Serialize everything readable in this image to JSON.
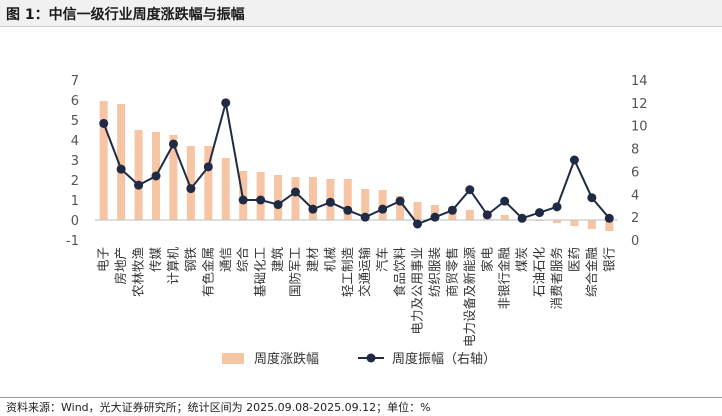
{
  "header": {
    "title": "图 1：中信一级行业周度涨跌幅与振幅"
  },
  "footer": {
    "source": "资料来源：Wind，光大证券研究所；统计区间为 2025.09.08-2025.09.12；单位：%"
  },
  "chart_data": {
    "type": "bar+line",
    "categories": [
      "电子",
      "房地产",
      "农林牧渔",
      "传媒",
      "计算机",
      "钢铁",
      "有色金属",
      "通信",
      "综合",
      "基础化工",
      "建筑",
      "国防军工",
      "建材",
      "机械",
      "轻工制造",
      "交通运输",
      "汽车",
      "食品饮料",
      "电力及公用事业",
      "纺织服装",
      "商贸零售",
      "电力设备及新能源",
      "家电",
      "非银行金融",
      "煤炭",
      "石油石化",
      "消费者服务",
      "医药",
      "综合金融",
      "银行"
    ],
    "series": [
      {
        "name": "周度涨跌幅",
        "type": "bar",
        "axis": "left",
        "color": "#F7C5A4",
        "values": [
          5.95,
          5.8,
          4.5,
          4.4,
          4.25,
          3.7,
          3.7,
          3.1,
          2.45,
          2.4,
          2.25,
          2.15,
          2.15,
          2.05,
          2.05,
          1.55,
          1.5,
          1.2,
          0.9,
          0.75,
          0.7,
          0.5,
          0.35,
          0.25,
          0.15,
          -0.05,
          -0.15,
          -0.3,
          -0.45,
          -0.55
        ]
      },
      {
        "name": "周度振幅（右轴）",
        "type": "line",
        "axis": "right",
        "color": "#1F2A44",
        "values": [
          10.2,
          6.2,
          4.8,
          5.6,
          8.4,
          4.5,
          6.4,
          12.0,
          3.5,
          3.5,
          3.1,
          4.2,
          2.7,
          3.3,
          2.6,
          2.0,
          2.7,
          3.4,
          1.4,
          2.0,
          2.6,
          4.4,
          2.2,
          3.4,
          1.9,
          2.4,
          2.9,
          7.0,
          3.7,
          1.9
        ]
      }
    ],
    "y_left": {
      "min": -1,
      "max": 7,
      "ticks": [
        -1,
        0,
        1,
        2,
        3,
        4,
        5,
        6,
        7
      ]
    },
    "y_right": {
      "min": 0,
      "max": 14,
      "ticks": [
        0,
        2,
        4,
        6,
        8,
        10,
        12,
        14
      ]
    },
    "legend": {
      "position": "bottom"
    }
  }
}
